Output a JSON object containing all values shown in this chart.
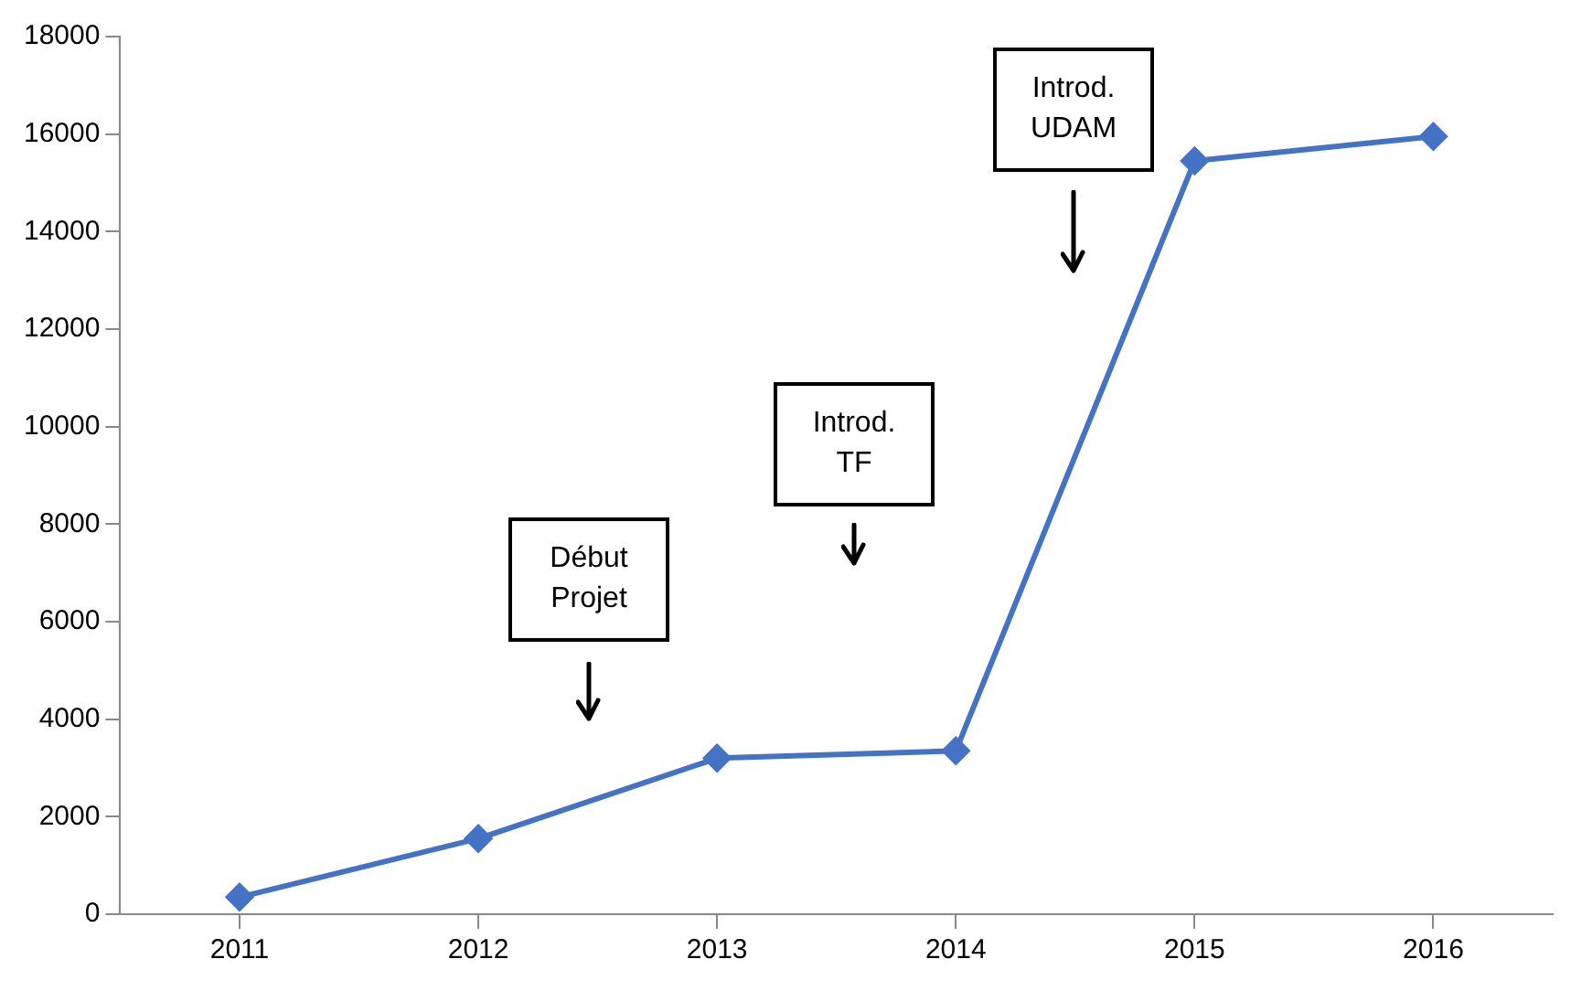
{
  "chart_data": {
    "type": "line",
    "x": [
      2011,
      2012,
      2013,
      2014,
      2015,
      2016
    ],
    "series": [
      {
        "color": "#4472c4",
        "values": [
          350,
          1550,
          3200,
          3350,
          15450,
          15950
        ]
      }
    ],
    "xlim": [
      2010.5,
      2016.5
    ],
    "xticks": [
      2011,
      2012,
      2013,
      2014,
      2015,
      2016
    ],
    "ylim": [
      0,
      18000
    ],
    "yticks": [
      0,
      2000,
      4000,
      6000,
      8000,
      10000,
      12000,
      14000,
      16000,
      18000
    ],
    "grid": false,
    "legend": false,
    "marker": "diamond",
    "line_style": "solid",
    "annotations": [
      "Début Projet",
      "Introd. TF",
      "Introd. UDAM"
    ]
  }
}
